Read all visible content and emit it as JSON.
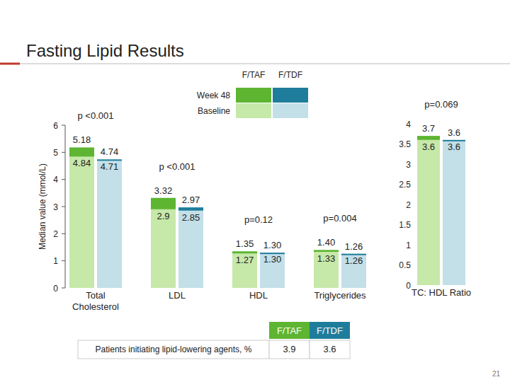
{
  "slide": {
    "title": "Fasting Lipid Results",
    "page_number": "21"
  },
  "chart_data": [
    {
      "type": "bar",
      "y_label": "Median value (mmol/L)",
      "categories": [
        "Total Cholesterol",
        "LDL",
        "HDL",
        "Triglycerides"
      ],
      "ylim": [
        0,
        6
      ],
      "yticks": [
        0,
        1,
        2,
        3,
        4,
        5,
        6
      ],
      "data_labels": true,
      "legend": "top",
      "legend_rows": [
        "Week 48",
        "Baseline"
      ],
      "series": [
        {
          "name": "F/TAF",
          "color": "#5db531",
          "baseline_color": "#c6e8a9",
          "values": [
            5.18,
            3.32,
            1.35,
            1.4
          ],
          "value_labels": [
            "5.18",
            "3.32",
            "1.35",
            "1.40"
          ],
          "baseline": [
            4.84,
            2.9,
            1.27,
            1.33
          ],
          "baseline_labels": [
            "4.84",
            "2.9",
            "1.27",
            "1.33"
          ]
        },
        {
          "name": "F/TDF",
          "color": "#1f7d9c",
          "baseline_color": "#c3dfe8",
          "values": [
            4.74,
            2.97,
            1.3,
            1.26
          ],
          "value_labels": [
            "4.74",
            "2.97",
            "1.30",
            "1.26"
          ],
          "baseline": [
            4.71,
            2.85,
            1.3,
            1.26
          ],
          "baseline_labels": [
            "4.71",
            "2.85",
            "1.30",
            "1.26"
          ]
        }
      ],
      "p_values": [
        "p <0.001",
        "p <0.001",
        "p=0.12",
        "p=0.004"
      ]
    },
    {
      "type": "bar",
      "categories": [
        "TC: HDL Ratio"
      ],
      "ylim": [
        0,
        4
      ],
      "yticks": [
        0,
        0.5,
        1,
        1.5,
        2,
        2.5,
        3,
        3.5,
        4
      ],
      "data_labels": true,
      "series": [
        {
          "color": "#5db531",
          "baseline_color": "#c6e8a9",
          "values": [
            3.7
          ],
          "value_labels": [
            "3.7"
          ],
          "baseline": [
            3.6
          ],
          "baseline_labels": [
            "3.6"
          ]
        },
        {
          "color": "#1f7d9c",
          "baseline_color": "#c3dfe8",
          "values": [
            3.6
          ],
          "value_labels": [
            "3.6"
          ],
          "baseline": [
            3.6
          ],
          "baseline_labels": [
            "3.6"
          ]
        }
      ],
      "p_values": [
        "p=0.069"
      ]
    }
  ],
  "table": {
    "rows": [
      {
        "label": "Patients initiating lipid-lowering agents, %",
        "values": [
          3.9,
          3.6
        ]
      }
    ]
  }
}
